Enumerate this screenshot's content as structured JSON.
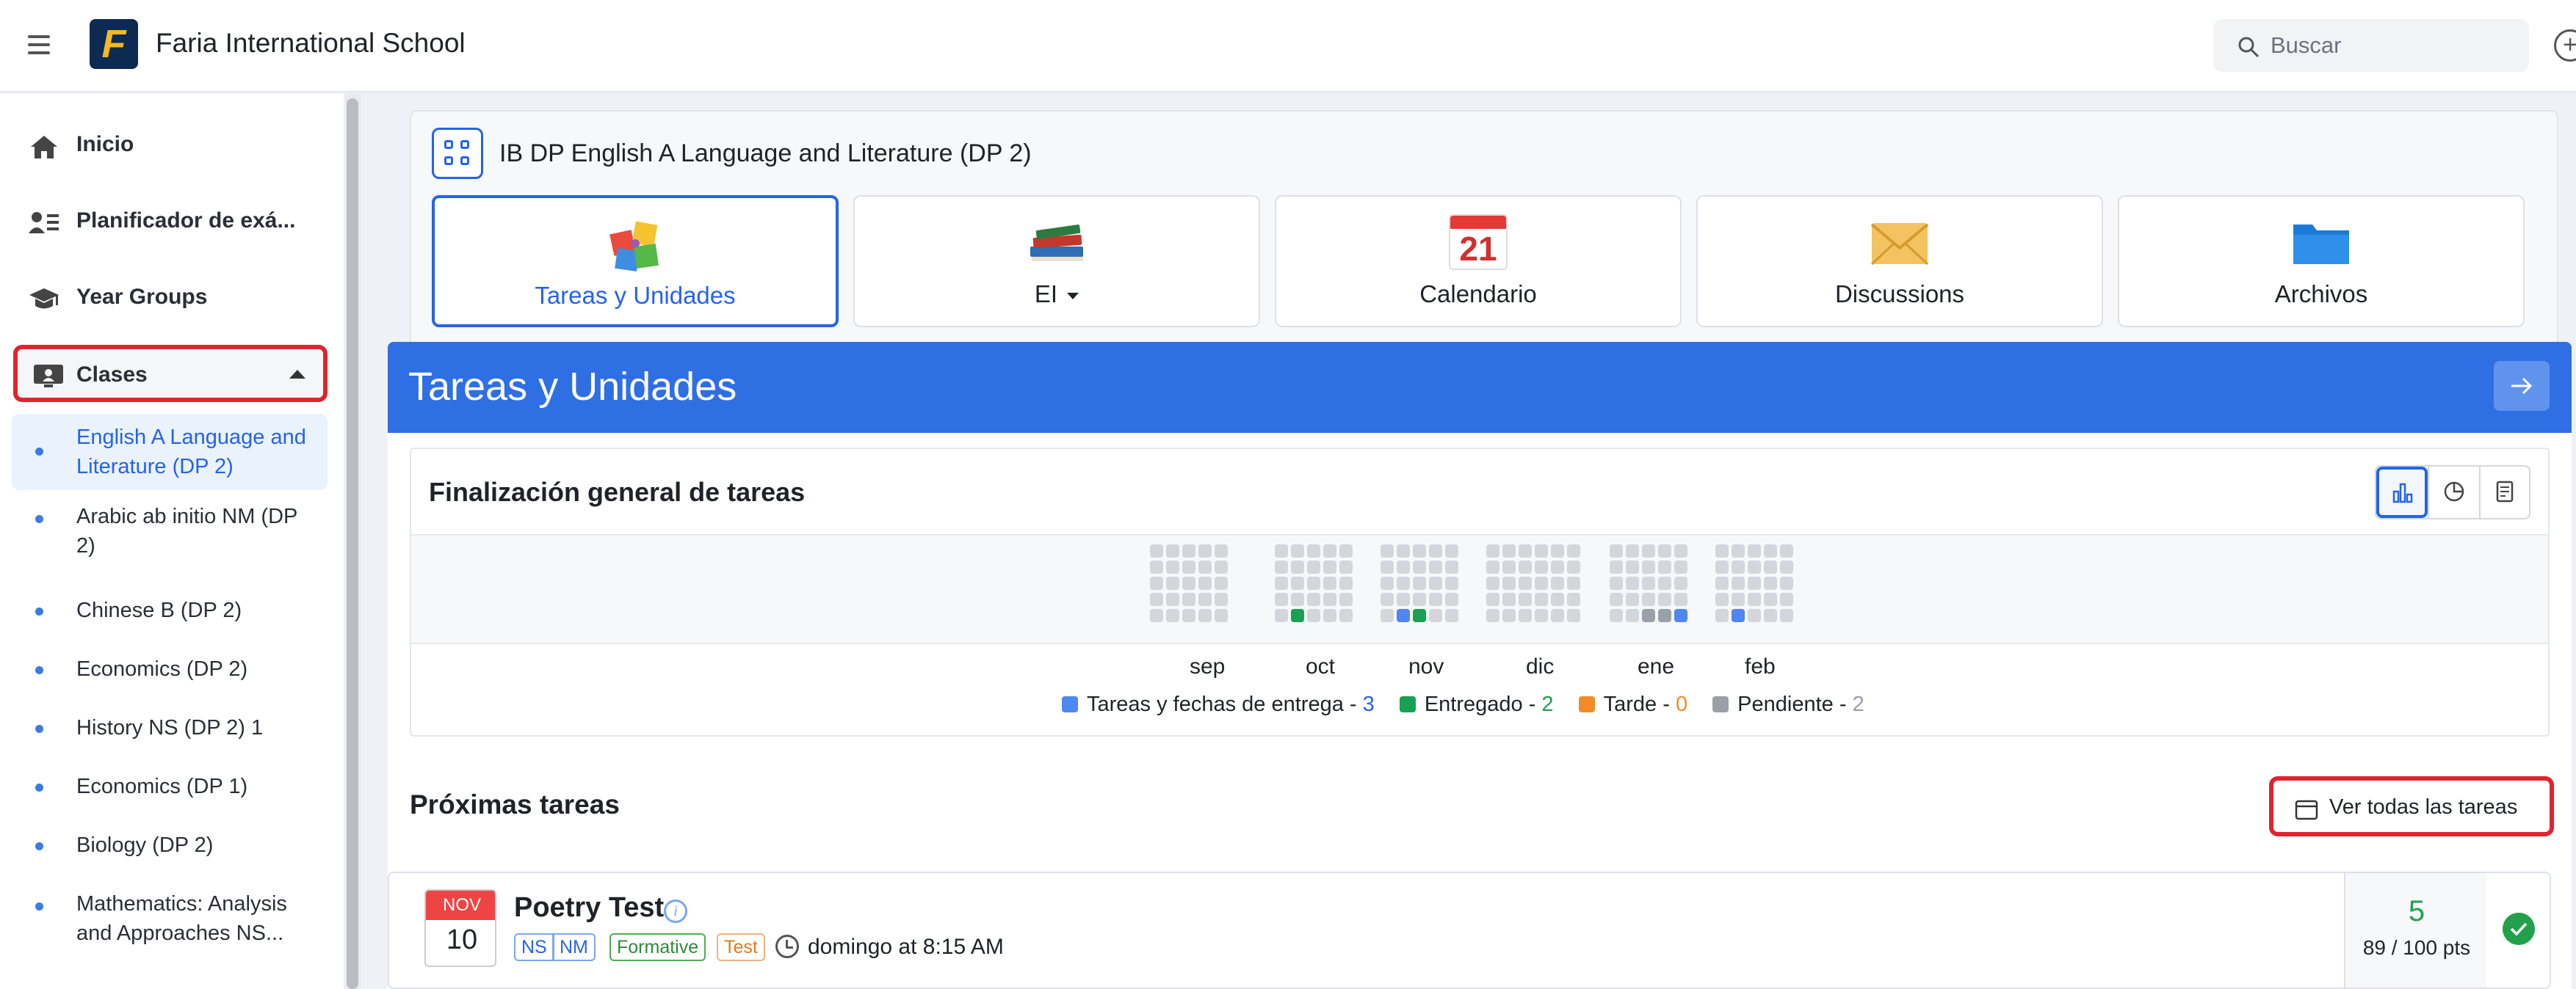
{
  "header": {
    "school_name": "Faria International School",
    "logo_letter": "F",
    "search_placeholder": "Buscar"
  },
  "sidebar": {
    "items": [
      {
        "label": "Inicio",
        "icon": "home-icon"
      },
      {
        "label": "Planificador de exá...",
        "icon": "planner-icon"
      },
      {
        "label": "Year Groups",
        "icon": "graduation-cap-icon"
      },
      {
        "label": "Clases",
        "icon": "class-icon",
        "expanded": true
      }
    ],
    "classes": [
      {
        "label": "English A Language and Literature (DP 2)",
        "active": true
      },
      {
        "label": "Arabic ab initio NM (DP 2)"
      },
      {
        "label": "Chinese B (DP 2)"
      },
      {
        "label": "Economics (DP 2)"
      },
      {
        "label": "History NS (DP 2) 1"
      },
      {
        "label": "Economics (DP 1)"
      },
      {
        "label": "Biology (DP 2)"
      },
      {
        "label": "Mathematics: Analysis and Approaches NS..."
      }
    ]
  },
  "class": {
    "title": "IB DP English A Language and Literature (DP 2)",
    "tiles": [
      {
        "label": "Tareas y Unidades",
        "icon": "puzzle-icon",
        "active": true
      },
      {
        "label": "EI",
        "icon": "books-icon",
        "dropdown": true
      },
      {
        "label": "Calendario",
        "icon": "calendar-icon",
        "calendar_day": "21"
      },
      {
        "label": "Discussions",
        "icon": "envelope-icon"
      },
      {
        "label": "Archivos",
        "icon": "folder-icon"
      }
    ]
  },
  "banner": {
    "title": "Tareas y Unidades"
  },
  "completion": {
    "title": "Finalización general de tareas",
    "view_toggles": [
      "bar-chart-icon",
      "pie-chart-icon",
      "report-icon"
    ],
    "months": [
      "sep",
      "oct",
      "nov",
      "dic",
      "ene",
      "feb"
    ],
    "legend": [
      {
        "label": "Tareas y fechas de entrega",
        "count": "3",
        "color": "#4f86f0"
      },
      {
        "label": "Entregado",
        "count": "2",
        "color": "#1aa053"
      },
      {
        "label": "Tarde",
        "count": "0",
        "color": "#f28c28"
      },
      {
        "label": "Pendiente",
        "count": "2",
        "color": "#9aa0a8"
      }
    ]
  },
  "upcoming": {
    "title": "Próximas tareas",
    "view_all": "Ver todas las tareas",
    "task": {
      "month": "NOV",
      "day": "10",
      "title": "Poetry Test",
      "tags": [
        "NS",
        "NM",
        "Formative",
        "Test"
      ],
      "due": "domingo at 8:15 AM",
      "score": "5",
      "points": "89 / 100 pts"
    }
  }
}
